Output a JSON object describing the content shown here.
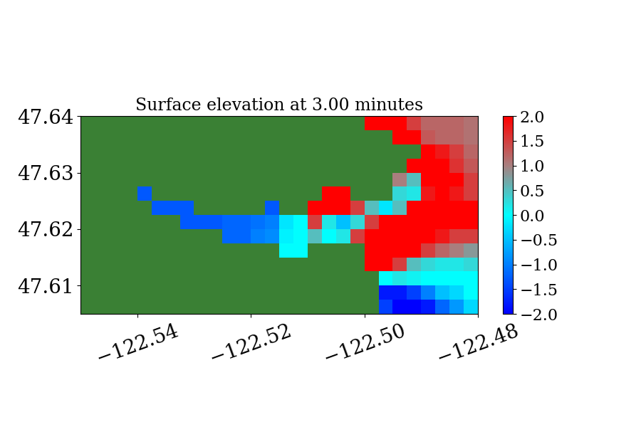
{
  "chart_data": {
    "type": "heatmap",
    "title": "Surface elevation at 3.00 minutes",
    "x": [
      -122.54875,
      -122.54625,
      -122.54375,
      -122.54125,
      -122.53875,
      -122.53625,
      -122.53375,
      -122.53125,
      -122.52875,
      -122.52625,
      -122.52375,
      -122.52125,
      -122.51875,
      -122.51625,
      -122.51375,
      -122.51125,
      -122.50875,
      -122.50625,
      -122.50375,
      -122.50125,
      -122.49875,
      -122.49625,
      -122.49375,
      -122.49125,
      -122.48875,
      -122.48625,
      -122.48375,
      -122.48125
    ],
    "y": [
      47.63875,
      47.63625,
      47.63375,
      47.63125,
      47.62875,
      47.62625,
      47.62375,
      47.62125,
      47.61875,
      47.61625,
      47.61375,
      47.61125,
      47.60875,
      47.60625
    ],
    "cells": [
      [
        null,
        null,
        null,
        null,
        null,
        null,
        null,
        null,
        null,
        null,
        null,
        null,
        null,
        null,
        null,
        null,
        null,
        null,
        null,
        null,
        2,
        2,
        2,
        1.5,
        1.2,
        1.2,
        1.2,
        1.1
      ],
      [
        null,
        null,
        null,
        null,
        null,
        null,
        null,
        null,
        null,
        null,
        null,
        null,
        null,
        null,
        null,
        null,
        null,
        null,
        null,
        null,
        null,
        null,
        2,
        2,
        1.3,
        1.2,
        1.2,
        1.1
      ],
      [
        null,
        null,
        null,
        null,
        null,
        null,
        null,
        null,
        null,
        null,
        null,
        null,
        null,
        null,
        null,
        null,
        null,
        null,
        null,
        null,
        null,
        null,
        null,
        null,
        2,
        1.8,
        1.5,
        1.2
      ],
      [
        null,
        null,
        null,
        null,
        null,
        null,
        null,
        null,
        null,
        null,
        null,
        null,
        null,
        null,
        null,
        null,
        null,
        null,
        null,
        null,
        null,
        null,
        null,
        2,
        2,
        2,
        1.6,
        1.3
      ],
      [
        null,
        null,
        null,
        null,
        null,
        null,
        null,
        null,
        null,
        null,
        null,
        null,
        null,
        null,
        null,
        null,
        null,
        null,
        null,
        null,
        null,
        null,
        1.0,
        0.5,
        2,
        2,
        2,
        1.5
      ],
      [
        null,
        null,
        null,
        null,
        -1.3,
        null,
        null,
        null,
        null,
        null,
        null,
        null,
        null,
        null,
        null,
        null,
        null,
        2,
        2,
        null,
        null,
        null,
        0.3,
        0.2,
        1.8,
        2,
        1.8,
        1.5
      ],
      [
        null,
        null,
        null,
        null,
        null,
        -1.3,
        -1.3,
        -1.3,
        null,
        null,
        null,
        null,
        null,
        -1.3,
        null,
        null,
        2,
        2,
        2,
        1.5,
        0.5,
        -0.2,
        0.5,
        2,
        2,
        2,
        2,
        2
      ],
      [
        null,
        null,
        null,
        null,
        null,
        null,
        null,
        -1.3,
        -1.3,
        -1.3,
        -1.2,
        -1.2,
        -1.1,
        -1.0,
        -0.2,
        0.0,
        1.5,
        0.2,
        -0.5,
        0.3,
        1.5,
        2,
        2,
        2,
        2,
        2,
        2,
        2
      ],
      [
        null,
        null,
        null,
        null,
        null,
        null,
        null,
        null,
        null,
        null,
        -1.2,
        -1.2,
        -1.0,
        -0.9,
        -0.1,
        0.0,
        0.5,
        0.0,
        0.2,
        1.5,
        2,
        2,
        2,
        2,
        2,
        1.8,
        1.5,
        1.5
      ],
      [
        null,
        null,
        null,
        null,
        null,
        null,
        null,
        null,
        null,
        null,
        null,
        null,
        null,
        null,
        0.0,
        0.0,
        null,
        null,
        null,
        null,
        2,
        2,
        2,
        2,
        1.5,
        1.2,
        1.0,
        0.8
      ],
      [
        null,
        null,
        null,
        null,
        null,
        null,
        null,
        null,
        null,
        null,
        null,
        null,
        null,
        null,
        null,
        null,
        null,
        null,
        null,
        null,
        2,
        2,
        1.5,
        0.5,
        0.3,
        0.2,
        0.2,
        0.3
      ],
      [
        null,
        null,
        null,
        null,
        null,
        null,
        null,
        null,
        null,
        null,
        null,
        null,
        null,
        null,
        null,
        null,
        null,
        null,
        null,
        null,
        null,
        0.0,
        0.2,
        0.1,
        0.0,
        0.0,
        0.0,
        0.0
      ],
      [
        null,
        null,
        null,
        null,
        null,
        null,
        null,
        null,
        null,
        null,
        null,
        null,
        null,
        null,
        null,
        null,
        null,
        null,
        null,
        null,
        null,
        -1.8,
        -1.8,
        -1.5,
        -1.0,
        -0.5,
        -0.3,
        0.0
      ],
      [
        null,
        null,
        null,
        null,
        null,
        null,
        null,
        null,
        null,
        null,
        null,
        null,
        null,
        null,
        null,
        null,
        null,
        null,
        null,
        null,
        null,
        -1.5,
        -2.0,
        -2.0,
        -1.8,
        -1.2,
        -0.8,
        -0.3
      ]
    ],
    "xlim": [
      -122.55,
      -122.48
    ],
    "ylim": [
      47.605,
      47.64
    ],
    "xticks": [
      {
        "value": -122.54,
        "label": "−122.54"
      },
      {
        "value": -122.52,
        "label": "−122.52"
      },
      {
        "value": -122.5,
        "label": "−122.50"
      },
      {
        "value": -122.48,
        "label": "−122.48"
      }
    ],
    "yticks": [
      47.61,
      47.62,
      47.63,
      47.64
    ],
    "colorbar_range": [
      -2,
      2
    ],
    "colorbar_ticks": [
      {
        "value": -2,
        "label": "−2.0"
      },
      {
        "value": -1.5,
        "label": "−1.5"
      },
      {
        "value": -1,
        "label": "−1.0"
      },
      {
        "value": -0.5,
        "label": "−0.5"
      },
      {
        "value": 0,
        "label": "0.0"
      },
      {
        "value": 0.5,
        "label": "0.5"
      },
      {
        "value": 1,
        "label": "1.0"
      },
      {
        "value": 1.5,
        "label": "1.5"
      },
      {
        "value": 2,
        "label": "2.0"
      }
    ]
  }
}
